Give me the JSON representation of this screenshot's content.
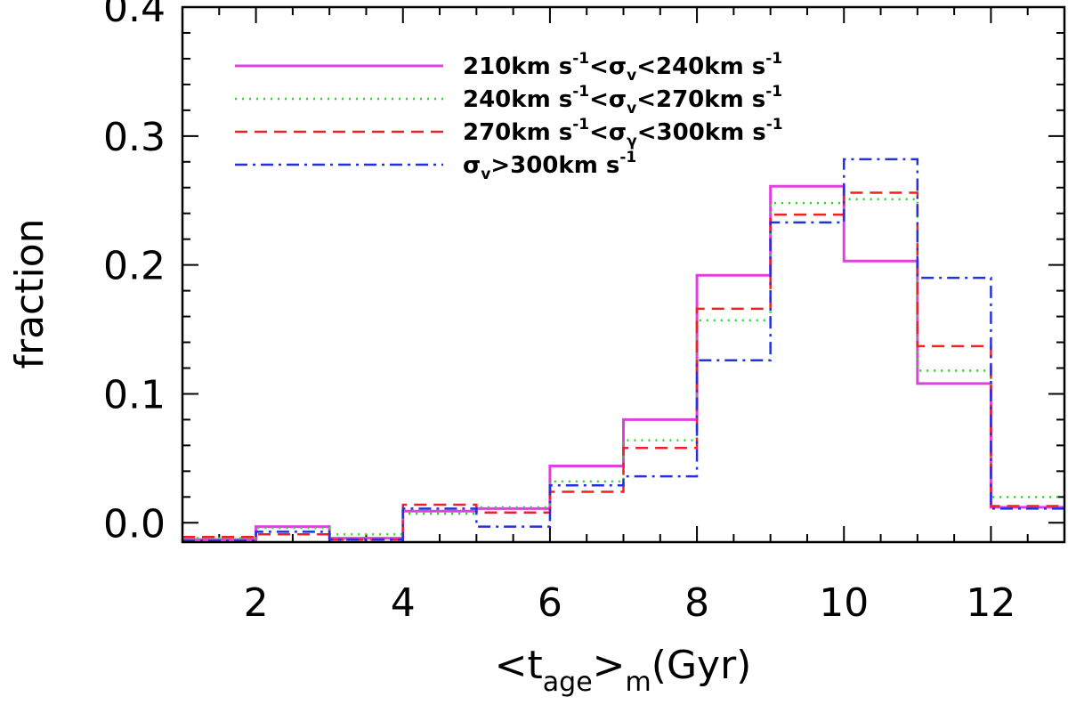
{
  "chart_data": {
    "type": "histogram-step",
    "title": "",
    "xlabel": {
      "main": "<t",
      "sub": "age",
      "mid": ">",
      "sub2": "m",
      "tail": "(Gyr)"
    },
    "ylabel": "fraction",
    "xlim": [
      1,
      13
    ],
    "ylim": [
      -0.015,
      0.4
    ],
    "xticks": [
      2,
      4,
      6,
      8,
      10,
      12
    ],
    "xtick_labels": [
      "2",
      "4",
      "6",
      "8",
      "10",
      "12"
    ],
    "yticks": [
      0.0,
      0.1,
      0.2,
      0.3,
      0.4
    ],
    "ytick_labels": [
      "0.0",
      "0.1",
      "0.2",
      "0.3",
      "0.4"
    ],
    "bin_edges": [
      1,
      2,
      3,
      4,
      5,
      6,
      7,
      8,
      9,
      10,
      11,
      12,
      13
    ],
    "series": [
      {
        "name": "210-240",
        "legend": {
          "a": "210km s",
          "a_sup": "-1",
          "b": "<σ",
          "b_sub": "v",
          "c": "<240km s",
          "c_sup": "-1"
        },
        "color": "#e040e0",
        "dash": "solid",
        "values": [
          -0.013,
          -0.003,
          -0.012,
          0.009,
          0.011,
          0.044,
          0.08,
          0.192,
          0.261,
          0.203,
          0.108,
          0.012
        ]
      },
      {
        "name": "240-270",
        "legend": {
          "a": "240km s",
          "a_sup": "-1",
          "b": "<σ",
          "b_sub": "v",
          "c": "<270km s",
          "c_sup": "-1"
        },
        "color": "#22dd22",
        "dash": "dotted",
        "values": [
          -0.012,
          -0.004,
          -0.009,
          0.007,
          0.012,
          0.032,
          0.064,
          0.157,
          0.248,
          0.251,
          0.118,
          0.02
        ]
      },
      {
        "name": "270-300",
        "legend": {
          "a": "270km s",
          "a_sup": "-1",
          "b": "<σ",
          "b_sub": "γ",
          "c": "<300km s",
          "c_sup": "-1"
        },
        "color": "#ee2222",
        "dash": "dashed",
        "values": [
          -0.011,
          -0.009,
          -0.013,
          0.014,
          0.008,
          0.024,
          0.058,
          0.166,
          0.239,
          0.256,
          0.137,
          0.013
        ]
      },
      {
        "name": ">300",
        "legend": {
          "a": "",
          "a_sup": "",
          "b": "σ",
          "b_sub": "v",
          "c": ">300km s",
          "c_sup": "-1"
        },
        "color": "#2233dd",
        "dash": "dashdot",
        "values": [
          -0.014,
          -0.007,
          -0.013,
          0.011,
          -0.003,
          0.029,
          0.036,
          0.126,
          0.233,
          0.282,
          0.19,
          0.011
        ]
      }
    ]
  }
}
